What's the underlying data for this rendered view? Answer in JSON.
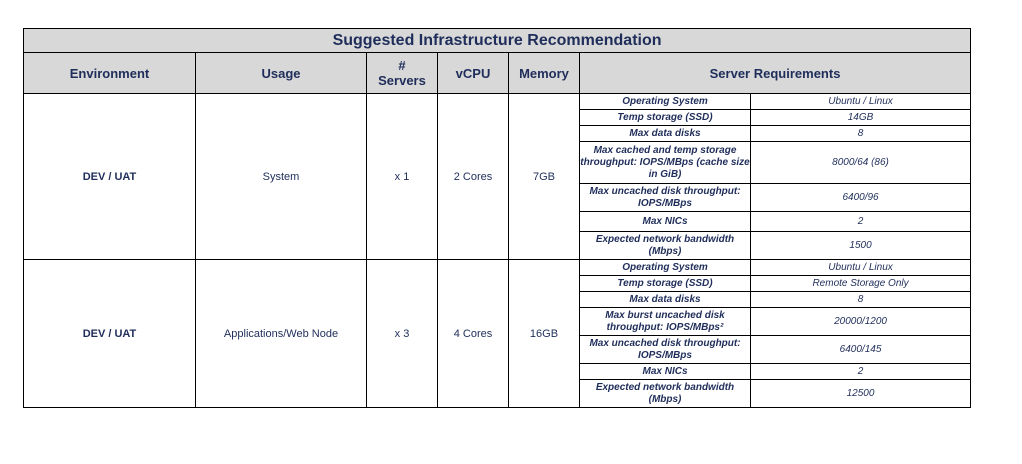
{
  "title": "Suggested Infrastructure Recommendation",
  "headers": {
    "environment": "Environment",
    "usage": "Usage",
    "servers": "# Servers",
    "vcpu": "vCPU",
    "memory": "Memory",
    "requirements": "Server Requirements"
  },
  "groups": [
    {
      "environment": "DEV / UAT",
      "usage": "System",
      "servers": "x 1",
      "vcpu": "2 Cores",
      "memory": "7GB",
      "requirements": [
        {
          "label": "Operating System",
          "value": "Ubuntu / Linux"
        },
        {
          "label": "Temp storage (SSD)",
          "value": "14GB"
        },
        {
          "label": "Max data disks",
          "value": "8"
        },
        {
          "label": "Max cached and temp storage throughput: IOPS/MBps (cache size in GiB)",
          "value": "8000/64 (86)"
        },
        {
          "label": "Max uncached disk throughput: IOPS/MBps",
          "value": "6400/96"
        },
        {
          "label": "Max NICs",
          "value": "2"
        },
        {
          "label": "Expected network bandwidth (Mbps)",
          "value": "1500"
        }
      ]
    },
    {
      "environment": "DEV / UAT",
      "usage": "Applications/Web Node",
      "servers": "x 3",
      "vcpu": "4 Cores",
      "memory": "16GB",
      "requirements": [
        {
          "label": "Operating System",
          "value": "Ubuntu / Linux"
        },
        {
          "label": "Temp storage (SSD)",
          "value": "Remote Storage Only"
        },
        {
          "label": "Max data disks",
          "value": "8"
        },
        {
          "label": "Max burst uncached disk throughput: IOPS/MBps²",
          "value": "20000/1200"
        },
        {
          "label": "Max uncached disk throughput: IOPS/MBps",
          "value": "6400/145"
        },
        {
          "label": "Max NICs",
          "value": "2"
        },
        {
          "label": "Expected network bandwidth (Mbps)",
          "value": "12500"
        }
      ]
    }
  ]
}
